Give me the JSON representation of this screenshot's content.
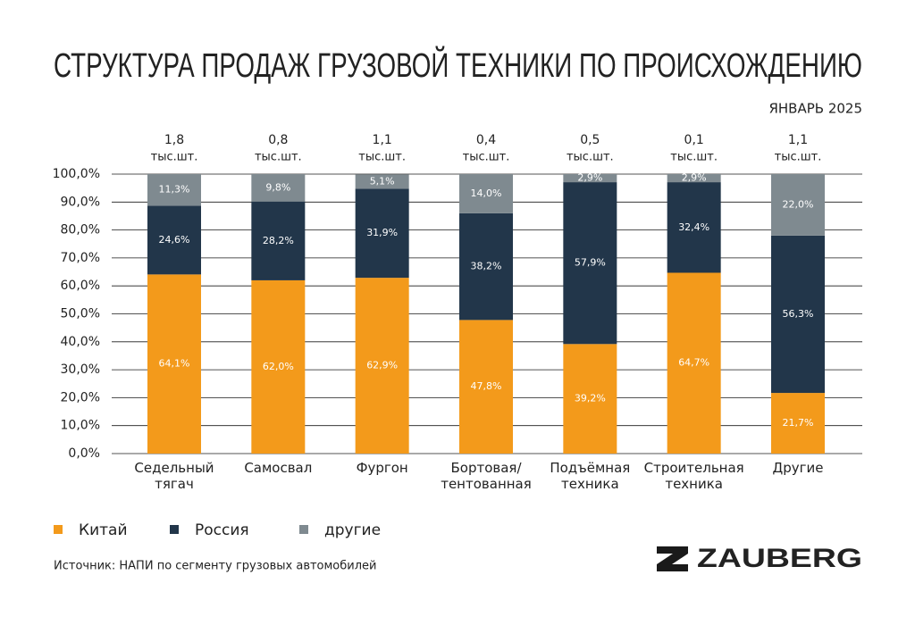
{
  "chart_data": {
    "type": "stacked-bar",
    "title": "СТРУКТУРА ПРОДАЖ ГРУЗОВОЙ ТЕХНИКИ ПО ПРОИСХОЖДЕНИЮ",
    "subtitle": "ЯНВАРЬ 2025",
    "categories": [
      "Седельный\nтягач",
      "Самосвал",
      "Фургон",
      "Бортовая/\nтентованная",
      "Подъёмная\nтехника",
      "Строительная\nтехника",
      "Другие"
    ],
    "totals": {
      "values": [
        1.8,
        0.8,
        1.1,
        0.4,
        0.5,
        0.1,
        1.1
      ],
      "value_labels": [
        "1,8",
        "0,8",
        "1,1",
        "0,4",
        "0,5",
        "0,1",
        "1,1"
      ],
      "unit": "тыс.шт."
    },
    "series": [
      {
        "name": "Китай",
        "color": "#f39a1b",
        "values": [
          64.1,
          62.0,
          62.9,
          47.8,
          39.2,
          64.7,
          21.7
        ],
        "value_labels": [
          "64,1%",
          "62,0%",
          "62,9%",
          "47,8%",
          "39,2%",
          "64,7%",
          "21,7%"
        ]
      },
      {
        "name": "Россия",
        "color": "#22364a",
        "values": [
          24.6,
          28.2,
          31.9,
          38.2,
          57.9,
          32.4,
          56.3
        ],
        "value_labels": [
          "24,6%",
          "28,2%",
          "31,9%",
          "38,2%",
          "57,9%",
          "32,4%",
          "56,3%"
        ]
      },
      {
        "name": "другие",
        "color": "#7f8a90",
        "values": [
          11.3,
          9.8,
          5.1,
          14.0,
          2.9,
          2.9,
          22.0
        ],
        "value_labels": [
          "11,3%",
          "9,8%",
          "5,1%",
          "14,0%",
          "2,9%",
          "2,9%",
          "22,0%"
        ]
      }
    ],
    "ylim": [
      0,
      100
    ],
    "yticks": [
      {
        "value": 0,
        "label": "0,0%"
      },
      {
        "value": 10,
        "label": "10,0%"
      },
      {
        "value": 20,
        "label": "20,0%"
      },
      {
        "value": 30,
        "label": "30,0%"
      },
      {
        "value": 40,
        "label": "40,0%"
      },
      {
        "value": 50,
        "label": "50,0%"
      },
      {
        "value": 60,
        "label": "60,0%"
      },
      {
        "value": 70,
        "label": "70,0%"
      },
      {
        "value": 80,
        "label": "80,0%"
      },
      {
        "value": 90,
        "label": "90,0%"
      },
      {
        "value": 100,
        "label": "100,0%"
      }
    ],
    "grid": true,
    "source": "Источник: НАПИ по сегменту грузовых автомобилей",
    "brand": "ZAUBERG"
  }
}
